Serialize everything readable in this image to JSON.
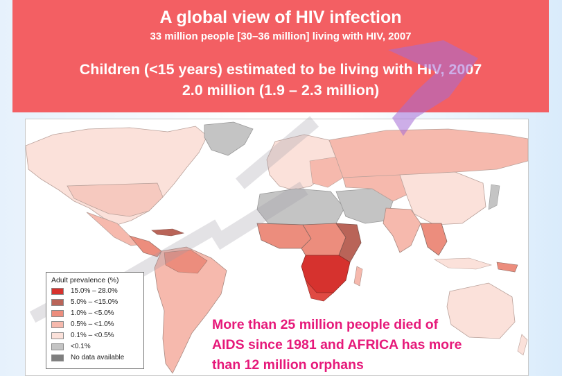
{
  "header": {
    "title": "A global view of HIV infection",
    "subtitle": "33 million people [30–36 million] living with HIV, 2007",
    "children_line": "Children (<15 years) estimated to be living with HIV, 2007",
    "children_value": "2.0 million (1.9 – 2.3 million)"
  },
  "legend": {
    "title": "Adult prevalence (%)",
    "items": [
      {
        "label": "15.0% – 28.0%",
        "color": "#d6322e"
      },
      {
        "label": "5.0% – <15.0%",
        "color": "#b96458"
      },
      {
        "label": "1.0% – <5.0%",
        "color": "#ec8d7d"
      },
      {
        "label": "0.5% – <1.0%",
        "color": "#f6b9ad"
      },
      {
        "label": "0.1% – <0.5%",
        "color": "#fbe1da"
      },
      {
        "label": "<0.1%",
        "color": "#c4c4c4"
      },
      {
        "label": "No data available",
        "color": "#7f7f7f"
      }
    ]
  },
  "footnote": {
    "line1": "More than 25 million people died of",
    "line2": "AIDS since 1981 and AFRICA has more",
    "line3": "than 12 million orphans"
  },
  "colors": {
    "header_bg": "#f35f63",
    "footnote_text": "#e6197a",
    "ocean": "#ffffff"
  }
}
